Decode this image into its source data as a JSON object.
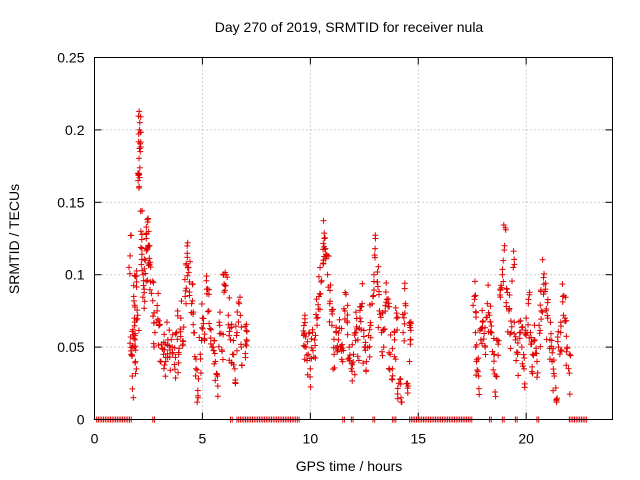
{
  "chart_data": {
    "type": "scatter",
    "title": "Day 270 of 2019, SRMTID for receiver nula",
    "xlabel": "GPS time / hours",
    "ylabel": "SRMTID / TECUs",
    "xlim": [
      0,
      24
    ],
    "ylim": [
      0,
      0.25
    ],
    "xticks": [
      0,
      5,
      10,
      15,
      20
    ],
    "xtick_labels": [
      "0",
      "5",
      "10",
      "15",
      "20"
    ],
    "yticks": [
      0,
      0.05,
      0.1,
      0.15,
      0.2,
      0.25
    ],
    "ytick_labels": [
      "0",
      "0.05",
      "0.1",
      "0.15",
      "0.2",
      "0.25"
    ],
    "grid": true,
    "marker": "+",
    "color": "#e00000",
    "series": [
      {
        "name": "SRMTID",
        "points": [
          [
            1.65,
            0.113
          ],
          [
            1.7,
            0.045
          ],
          [
            1.75,
            0.03
          ],
          [
            1.78,
            0.062
          ],
          [
            1.82,
            0.085
          ],
          [
            1.85,
            0.07
          ],
          [
            1.88,
            0.055
          ],
          [
            1.9,
            0.04
          ],
          [
            1.95,
            0.095
          ],
          [
            2.0,
            0.072
          ],
          [
            2.02,
            0.165
          ],
          [
            2.05,
            0.17
          ],
          [
            2.08,
            0.2
          ],
          [
            2.1,
            0.205
          ],
          [
            2.12,
            0.185
          ],
          [
            2.15,
            0.13
          ],
          [
            2.2,
            0.118
          ],
          [
            2.25,
            0.1
          ],
          [
            2.3,
            0.09
          ],
          [
            2.35,
            0.11
          ],
          [
            2.4,
            0.125
          ],
          [
            2.45,
            0.138
          ],
          [
            2.5,
            0.108
          ],
          [
            2.55,
            0.12
          ],
          [
            2.6,
            0.095
          ],
          [
            2.7,
            0.082
          ],
          [
            2.8,
            0.06
          ],
          [
            2.9,
            0.075
          ],
          [
            3.0,
            0.065
          ],
          [
            3.1,
            0.052
          ],
          [
            3.2,
            0.045
          ],
          [
            3.3,
            0.04
          ],
          [
            3.4,
            0.055
          ],
          [
            3.5,
            0.048
          ],
          [
            3.6,
            0.05
          ],
          [
            3.7,
            0.038
          ],
          [
            3.8,
            0.06
          ],
          [
            3.9,
            0.045
          ],
          [
            4.0,
            0.07
          ],
          [
            4.1,
            0.052
          ],
          [
            4.2,
            0.085
          ],
          [
            4.3,
            0.112
          ],
          [
            4.35,
            0.105
          ],
          [
            4.4,
            0.095
          ],
          [
            4.5,
            0.08
          ],
          [
            4.6,
            0.06
          ],
          [
            4.7,
            0.035
          ],
          [
            4.8,
            0.015
          ],
          [
            4.9,
            0.045
          ],
          [
            5.0,
            0.07
          ],
          [
            5.1,
            0.055
          ],
          [
            5.2,
            0.09
          ],
          [
            5.3,
            0.075
          ],
          [
            5.4,
            0.062
          ],
          [
            5.5,
            0.05
          ],
          [
            5.6,
            0.04
          ],
          [
            5.7,
            0.03
          ],
          [
            5.8,
            0.065
          ],
          [
            5.9,
            0.048
          ],
          [
            6.0,
            0.088
          ],
          [
            6.1,
            0.1
          ],
          [
            6.2,
            0.072
          ],
          [
            6.3,
            0.055
          ],
          [
            6.4,
            0.045
          ],
          [
            6.5,
            0.035
          ],
          [
            6.6,
            0.06
          ],
          [
            6.7,
            0.08
          ],
          [
            6.8,
            0.05
          ],
          [
            7.0,
            0.052
          ],
          [
            7.05,
            0.055
          ],
          [
            9.7,
            0.058
          ],
          [
            9.75,
            0.072
          ],
          [
            9.8,
            0.05
          ],
          [
            9.9,
            0.045
          ],
          [
            10.0,
            0.035
          ],
          [
            10.1,
            0.062
          ],
          [
            10.2,
            0.055
          ],
          [
            10.3,
            0.07
          ],
          [
            10.4,
            0.085
          ],
          [
            10.5,
            0.095
          ],
          [
            10.6,
            0.11
          ],
          [
            10.65,
            0.125
          ],
          [
            10.7,
            0.118
          ],
          [
            10.8,
            0.1
          ],
          [
            10.9,
            0.08
          ],
          [
            11.0,
            0.065
          ],
          [
            11.1,
            0.045
          ],
          [
            11.2,
            0.06
          ],
          [
            11.3,
            0.055
          ],
          [
            11.4,
            0.05
          ],
          [
            11.5,
            0.04
          ],
          [
            11.6,
            0.075
          ],
          [
            11.7,
            0.068
          ],
          [
            11.8,
            0.05
          ],
          [
            11.9,
            0.035
          ],
          [
            12.0,
            0.045
          ],
          [
            12.1,
            0.06
          ],
          [
            12.2,
            0.055
          ],
          [
            12.3,
            0.07
          ],
          [
            12.4,
            0.08
          ],
          [
            12.5,
            0.05
          ],
          [
            12.6,
            0.04
          ],
          [
            12.7,
            0.058
          ],
          [
            12.8,
            0.065
          ],
          [
            12.9,
            0.085
          ],
          [
            13.0,
            0.118
          ],
          [
            13.1,
            0.095
          ],
          [
            13.2,
            0.075
          ],
          [
            13.3,
            0.06
          ],
          [
            13.4,
            0.05
          ],
          [
            13.5,
            0.088
          ],
          [
            13.6,
            0.078
          ],
          [
            13.7,
            0.045
          ],
          [
            13.8,
            0.035
          ],
          [
            13.9,
            0.055
          ],
          [
            14.0,
            0.07
          ],
          [
            14.1,
            0.025
          ],
          [
            14.2,
            0.015
          ],
          [
            14.3,
            0.06
          ],
          [
            14.4,
            0.08
          ],
          [
            14.5,
            0.025
          ],
          [
            14.6,
            0.065
          ],
          [
            14.65,
            0.055
          ],
          [
            17.6,
            0.085
          ],
          [
            17.65,
            0.06
          ],
          [
            17.7,
            0.04
          ],
          [
            17.8,
            0.03
          ],
          [
            17.9,
            0.055
          ],
          [
            18.0,
            0.068
          ],
          [
            18.1,
            0.05
          ],
          [
            18.2,
            0.08
          ],
          [
            18.3,
            0.072
          ],
          [
            18.4,
            0.06
          ],
          [
            18.5,
            0.045
          ],
          [
            18.6,
            0.03
          ],
          [
            18.7,
            0.052
          ],
          [
            18.8,
            0.09
          ],
          [
            18.9,
            0.1
          ],
          [
            19.0,
            0.12
          ],
          [
            19.1,
            0.09
          ],
          [
            19.2,
            0.075
          ],
          [
            19.3,
            0.06
          ],
          [
            19.4,
            0.105
          ],
          [
            19.5,
            0.055
          ],
          [
            19.6,
            0.045
          ],
          [
            19.7,
            0.06
          ],
          [
            19.8,
            0.05
          ],
          [
            19.9,
            0.035
          ],
          [
            20.0,
            0.07
          ],
          [
            20.1,
            0.08
          ],
          [
            20.2,
            0.06
          ],
          [
            20.3,
            0.045
          ],
          [
            20.4,
            0.055
          ],
          [
            20.5,
            0.04
          ],
          [
            20.6,
            0.065
          ],
          [
            20.7,
            0.075
          ],
          [
            20.8,
            0.098
          ],
          [
            20.9,
            0.09
          ],
          [
            21.0,
            0.07
          ],
          [
            21.1,
            0.055
          ],
          [
            21.2,
            0.04
          ],
          [
            21.3,
            0.03
          ],
          [
            21.4,
            0.013
          ],
          [
            21.5,
            0.05
          ],
          [
            21.6,
            0.06
          ],
          [
            21.7,
            0.085
          ],
          [
            21.8,
            0.07
          ],
          [
            21.9,
            0.05
          ],
          [
            22.0,
            0.032
          ]
        ]
      }
    ],
    "zero_segments": [
      [
        0.1,
        1.7
      ],
      [
        2.7,
        2.8
      ],
      [
        6.3,
        6.4
      ],
      [
        6.6,
        9.5
      ],
      [
        11.5,
        11.6
      ],
      [
        11.9,
        12.0
      ],
      [
        12.9,
        13.0
      ],
      [
        13.8,
        14.0
      ],
      [
        14.6,
        17.5
      ],
      [
        18.3,
        18.4
      ],
      [
        18.9,
        19.0
      ],
      [
        19.5,
        19.6
      ],
      [
        20.5,
        20.6
      ],
      [
        22.0,
        22.8
      ]
    ]
  }
}
